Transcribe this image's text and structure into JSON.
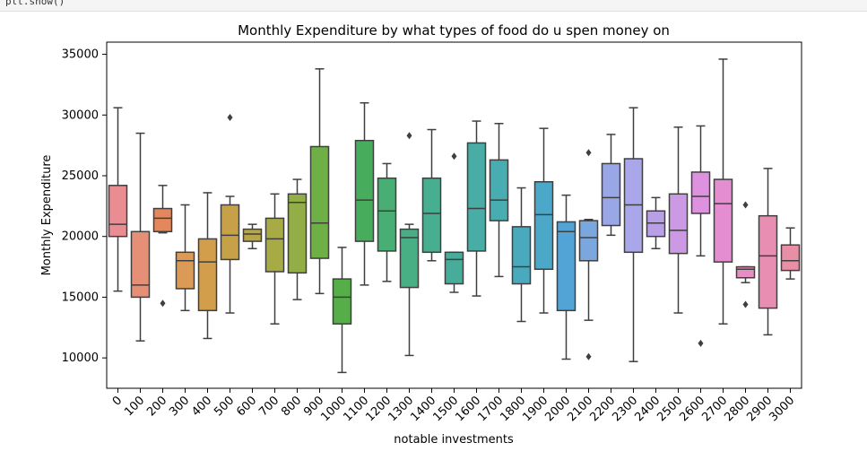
{
  "code_cell": {
    "partial_text": "plt.show()"
  },
  "chart_data": {
    "type": "box",
    "title": "Monthly Expenditure by what types of food do u spen money on",
    "xlabel": "notable investments",
    "ylabel": "Monthly Expenditure",
    "ylim": [
      7500,
      36000
    ],
    "yticks": [
      10000,
      15000,
      20000,
      25000,
      30000,
      35000
    ],
    "grid": false,
    "legend": "none",
    "categories": [
      "0",
      "100",
      "200",
      "300",
      "400",
      "500",
      "600",
      "700",
      "800",
      "900",
      "1000",
      "1100",
      "1200",
      "1300",
      "1400",
      "1500",
      "1600",
      "1700",
      "1800",
      "1900",
      "2000",
      "2100",
      "2200",
      "2300",
      "2400",
      "2500",
      "2600",
      "2700",
      "2800",
      "2900",
      "3000"
    ],
    "boxes": [
      {
        "whislo": 15500,
        "q1": 20000,
        "med": 21000,
        "q3": 24200,
        "whishi": 30600,
        "fliers": [],
        "color": "#ea8d93"
      },
      {
        "whislo": 11400,
        "q1": 15000,
        "med": 16000,
        "q3": 20400,
        "whishi": 28500,
        "fliers": [],
        "color": "#e58f76"
      },
      {
        "whislo": 20300,
        "q1": 20400,
        "med": 21500,
        "q3": 22300,
        "whishi": 24200,
        "fliers": [
          14500
        ],
        "color": "#e5875c"
      },
      {
        "whislo": 13900,
        "q1": 15700,
        "med": 18000,
        "q3": 18700,
        "whishi": 22600,
        "fliers": [],
        "color": "#db9b57"
      },
      {
        "whislo": 11600,
        "q1": 13900,
        "med": 17900,
        "q3": 19800,
        "whishi": 23600,
        "fliers": [],
        "color": "#d29e4c"
      },
      {
        "whislo": 13700,
        "q1": 18100,
        "med": 20100,
        "q3": 22600,
        "whishi": 23300,
        "fliers": [
          29800
        ],
        "color": "#c6a148"
      },
      {
        "whislo": 19000,
        "q1": 19600,
        "med": 20200,
        "q3": 20600,
        "whishi": 21000,
        "fliers": [],
        "color": "#b7a646"
      },
      {
        "whislo": 12800,
        "q1": 17100,
        "med": 19800,
        "q3": 21500,
        "whishi": 23500,
        "fliers": [],
        "color": "#a6ab45"
      },
      {
        "whislo": 14800,
        "q1": 17000,
        "med": 22800,
        "q3": 23500,
        "whishi": 24700,
        "fliers": [],
        "color": "#93ae46"
      },
      {
        "whislo": 15300,
        "q1": 18200,
        "med": 21100,
        "q3": 27400,
        "whishi": 33800,
        "fliers": [],
        "color": "#6eb045"
      },
      {
        "whislo": 8800,
        "q1": 12800,
        "med": 15000,
        "q3": 16500,
        "whishi": 19100,
        "fliers": [],
        "color": "#56ae48"
      },
      {
        "whislo": 16000,
        "q1": 19600,
        "med": 23000,
        "q3": 27900,
        "whishi": 31000,
        "fliers": [],
        "color": "#47ad5c"
      },
      {
        "whislo": 16300,
        "q1": 18800,
        "med": 22100,
        "q3": 24800,
        "whishi": 26000,
        "fliers": [],
        "color": "#48ae74"
      },
      {
        "whislo": 10200,
        "q1": 15800,
        "med": 19900,
        "q3": 20600,
        "whishi": 21000,
        "fliers": [
          28300
        ],
        "color": "#48ae83"
      },
      {
        "whislo": 18000,
        "q1": 18700,
        "med": 21900,
        "q3": 24800,
        "whishi": 28800,
        "fliers": [],
        "color": "#47ae8f"
      },
      {
        "whislo": 15400,
        "q1": 16100,
        "med": 18100,
        "q3": 18700,
        "whishi": 18700,
        "fliers": [
          26600
        ],
        "color": "#47ad9a"
      },
      {
        "whislo": 15100,
        "q1": 18800,
        "med": 22300,
        "q3": 27700,
        "whishi": 29500,
        "fliers": [],
        "color": "#47ada5"
      },
      {
        "whislo": 16700,
        "q1": 21300,
        "med": 23000,
        "q3": 26300,
        "whishi": 29300,
        "fliers": [],
        "color": "#49acb1"
      },
      {
        "whislo": 13000,
        "q1": 16100,
        "med": 17500,
        "q3": 20800,
        "whishi": 24000,
        "fliers": [],
        "color": "#4aaabd"
      },
      {
        "whislo": 13700,
        "q1": 17300,
        "med": 21800,
        "q3": 24500,
        "whishi": 28900,
        "fliers": [],
        "color": "#4ba8c9"
      },
      {
        "whislo": 9900,
        "q1": 13900,
        "med": 20400,
        "q3": 21200,
        "whishi": 23400,
        "fliers": [],
        "color": "#52a3d6"
      },
      {
        "whislo": 13100,
        "q1": 18000,
        "med": 19900,
        "q3": 21300,
        "whishi": 21400,
        "fliers": [
          26900,
          10100
        ],
        "color": "#7aa7de"
      },
      {
        "whislo": 20100,
        "q1": 20900,
        "med": 23200,
        "q3": 26000,
        "whishi": 28400,
        "fliers": [],
        "color": "#9aa7e6"
      },
      {
        "whislo": 9700,
        "q1": 18700,
        "med": 22600,
        "q3": 26400,
        "whishi": 30600,
        "fliers": [],
        "color": "#aaa6ea"
      },
      {
        "whislo": 19000,
        "q1": 20000,
        "med": 21100,
        "q3": 22100,
        "whishi": 23200,
        "fliers": [],
        "color": "#b99fe6"
      },
      {
        "whislo": 13700,
        "q1": 18600,
        "med": 20500,
        "q3": 23500,
        "whishi": 29000,
        "fliers": [],
        "color": "#cc9ae4"
      },
      {
        "whislo": 18400,
        "q1": 21900,
        "med": 23300,
        "q3": 25300,
        "whishi": 29100,
        "fliers": [
          11200
        ],
        "color": "#dd91df"
      },
      {
        "whislo": 12800,
        "q1": 17900,
        "med": 22700,
        "q3": 24700,
        "whishi": 34600,
        "fliers": [],
        "color": "#e48dd0"
      },
      {
        "whislo": 16200,
        "q1": 16600,
        "med": 17300,
        "q3": 17500,
        "whishi": 17500,
        "fliers": [
          22600,
          14400
        ],
        "color": "#e78ec1"
      },
      {
        "whislo": 11900,
        "q1": 14100,
        "med": 18400,
        "q3": 21700,
        "whishi": 25600,
        "fliers": [],
        "color": "#e88eb3"
      },
      {
        "whislo": 16500,
        "q1": 17200,
        "med": 18000,
        "q3": 19300,
        "whishi": 20700,
        "fliers": [],
        "color": "#e98fa5"
      }
    ]
  }
}
